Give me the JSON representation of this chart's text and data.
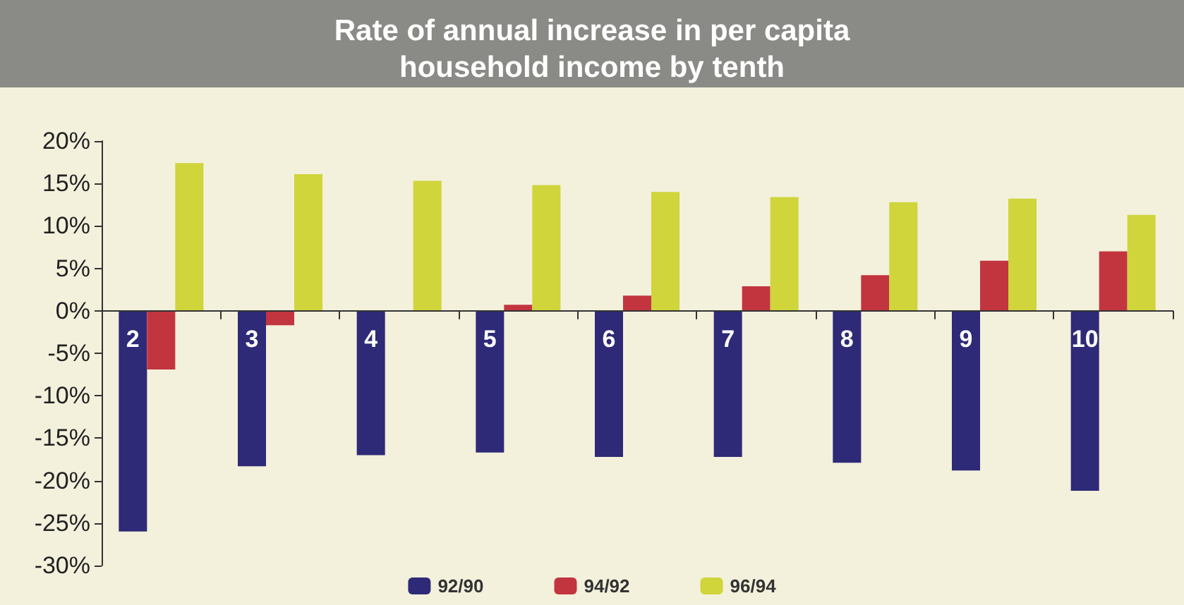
{
  "chart_data": {
    "type": "bar",
    "title": "Rate of annual increase in per capita\nhousehold income by tenth",
    "categories": [
      "2",
      "3",
      "4",
      "5",
      "6",
      "7",
      "8",
      "9",
      "10"
    ],
    "series": [
      {
        "name": "92/90",
        "color": "#2e2a78",
        "values": [
          -26,
          -18.3,
          -17,
          -16.7,
          -17.2,
          -17.2,
          -17.9,
          -18.8,
          -21.2
        ]
      },
      {
        "name": "94/92",
        "color": "#c2353f",
        "values": [
          -6.9,
          -1.7,
          0,
          0.7,
          1.8,
          2.9,
          4.2,
          5.9,
          7
        ]
      },
      {
        "name": "96/94",
        "color": "#cfd53a",
        "values": [
          17.4,
          16.1,
          15.3,
          14.8,
          14,
          13.4,
          12.8,
          13.2,
          11.3
        ]
      }
    ],
    "ylim": [
      -30,
      20
    ],
    "yticks": [
      {
        "value": -30,
        "label": "-30%"
      },
      {
        "value": -25,
        "label": "-25%"
      },
      {
        "value": -20,
        "label": "-20%"
      },
      {
        "value": -15,
        "label": "-15%"
      },
      {
        "value": -10,
        "label": "-10%"
      },
      {
        "value": -5,
        "label": "-5%"
      },
      {
        "value": 0,
        "label": "0%"
      },
      {
        "value": 5,
        "label": "5%"
      },
      {
        "value": 10,
        "label": "10%"
      },
      {
        "value": 15,
        "label": "15%"
      },
      {
        "value": 20,
        "label": "20%"
      }
    ],
    "grid": false,
    "legend": "bottom"
  }
}
